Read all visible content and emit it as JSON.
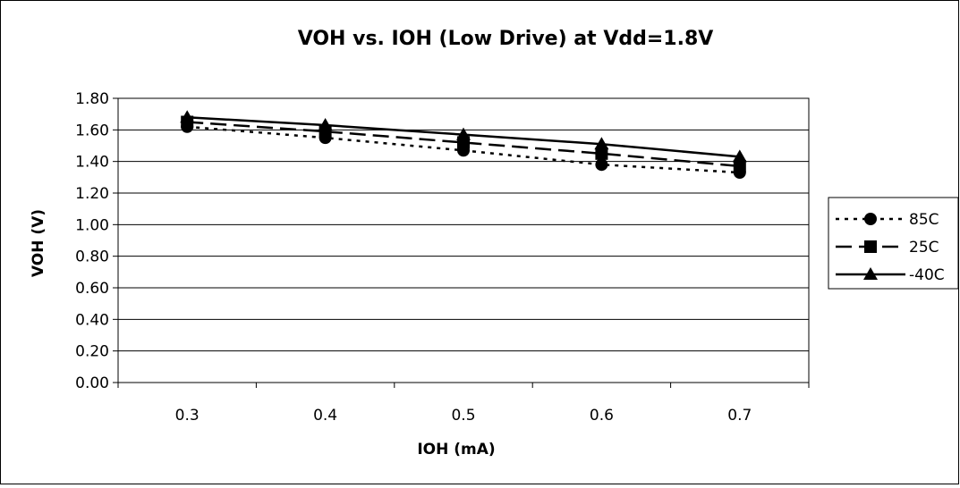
{
  "chart_data": {
    "type": "line",
    "title": "VOH vs. IOH (Low Drive) at Vdd=1.8V",
    "xlabel": "IOH (mA)",
    "ylabel": "VOH (V)",
    "categories": [
      "0.3",
      "0.4",
      "0.5",
      "0.6",
      "0.7"
    ],
    "y_ticks": [
      "0.00",
      "0.20",
      "0.40",
      "0.60",
      "0.80",
      "1.00",
      "1.20",
      "1.40",
      "1.60",
      "1.80"
    ],
    "ylim": [
      0,
      1.8
    ],
    "grid": true,
    "legend_position": "right",
    "series": [
      {
        "name": "85C",
        "values": [
          1.62,
          1.55,
          1.47,
          1.38,
          1.33
        ],
        "line_style": "dotted",
        "marker": "circle"
      },
      {
        "name": "25C",
        "values": [
          1.65,
          1.59,
          1.52,
          1.45,
          1.37
        ],
        "line_style": "dashed",
        "marker": "square"
      },
      {
        "name": "-40C",
        "values": [
          1.68,
          1.63,
          1.57,
          1.51,
          1.43
        ],
        "line_style": "solid",
        "marker": "triangle"
      }
    ],
    "colors": {
      "line": "#000000",
      "background": "#ffffff",
      "border": "#000000"
    }
  }
}
